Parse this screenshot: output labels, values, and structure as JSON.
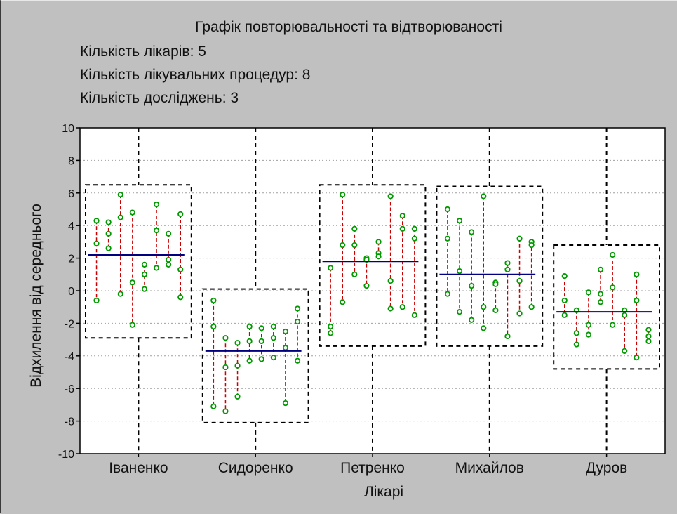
{
  "chart_data": {
    "type": "scatter",
    "title": "Графік повторювальності та відтворюваності",
    "info_lines": [
      "Кількість лікарів: 5",
      "Кількість лікувальних процедур: 8",
      "Кількість досліджень: 3"
    ],
    "xlabel": "Лікарі",
    "ylabel": "Відхилення від середнього",
    "ylim": [
      -10,
      10
    ],
    "yticks": [
      -10,
      -8,
      -6,
      -4,
      -2,
      0,
      2,
      4,
      6,
      8,
      10
    ],
    "grid": true,
    "categories": [
      "Іваненко",
      "Сидоренко",
      "Петренко",
      "Михайлов",
      "Дуров"
    ],
    "groups": [
      {
        "name": "Іваненко",
        "mean": 2.2,
        "upper": 6.5,
        "lower": -2.9,
        "procedures": [
          [
            4.3,
            2.9,
            -0.6
          ],
          [
            4.2,
            3.5,
            2.6
          ],
          [
            5.9,
            4.5,
            -0.2
          ],
          [
            4.8,
            0.5,
            -2.1
          ],
          [
            1.6,
            1.0,
            0.1
          ],
          [
            5.3,
            3.7,
            1.4
          ],
          [
            3.5,
            1.9,
            1.6
          ],
          [
            4.7,
            1.3,
            -0.4
          ]
        ]
      },
      {
        "name": "Сидоренко",
        "mean": -3.7,
        "upper": 0.1,
        "lower": -8.1,
        "procedures": [
          [
            -0.6,
            -2.2,
            -7.1
          ],
          [
            -2.9,
            -4.7,
            -7.4
          ],
          [
            -3.2,
            -4.6,
            -6.5
          ],
          [
            -2.2,
            -3.1,
            -4.3
          ],
          [
            -2.3,
            -3.1,
            -4.2
          ],
          [
            -2.2,
            -2.9,
            -4.1
          ],
          [
            -2.5,
            -3.5,
            -6.9
          ],
          [
            -1.1,
            -1.9,
            -4.3
          ]
        ]
      },
      {
        "name": "Петренко",
        "mean": 1.8,
        "upper": 6.5,
        "lower": -3.4,
        "procedures": [
          [
            1.4,
            -2.2,
            -2.6
          ],
          [
            5.9,
            2.8,
            -0.7
          ],
          [
            3.8,
            2.8,
            1.0
          ],
          [
            2.0,
            1.9,
            0.3
          ],
          [
            3.0,
            2.3,
            2.1
          ],
          [
            5.8,
            0.6,
            -1.1
          ],
          [
            4.6,
            3.8,
            -1.0
          ],
          [
            3.8,
            3.2,
            -1.5
          ]
        ]
      },
      {
        "name": "Михайлов",
        "mean": 1.0,
        "upper": 6.4,
        "lower": -3.4,
        "procedures": [
          [
            5.0,
            3.2,
            -0.2
          ],
          [
            4.3,
            1.2,
            -1.3
          ],
          [
            3.6,
            0.3,
            -1.8
          ],
          [
            5.8,
            -1.0,
            -2.3
          ],
          [
            0.5,
            0.4,
            -1.2
          ],
          [
            1.7,
            1.3,
            -2.8
          ],
          [
            3.2,
            0.6,
            -1.4
          ],
          [
            3.0,
            2.8,
            -1.0
          ]
        ]
      },
      {
        "name": "Дуров",
        "mean": -1.3,
        "upper": 2.8,
        "lower": -4.8,
        "procedures": [
          [
            0.9,
            -0.6,
            -1.5
          ],
          [
            -1.2,
            -2.6,
            -3.3
          ],
          [
            -0.1,
            -2.1,
            -2.7
          ],
          [
            1.3,
            -0.2,
            -0.7
          ],
          [
            2.2,
            0.2,
            -2.1
          ],
          [
            -1.2,
            -1.5,
            -3.7
          ],
          [
            1.0,
            -0.6,
            -4.1
          ],
          [
            -2.4,
            -2.8,
            -3.1
          ]
        ]
      }
    ],
    "colors": {
      "background": "#c0c0c0",
      "plot_area": "#ffffff",
      "points": "#009900",
      "range_lines": "#cc0000",
      "mean_line": "#000080",
      "boxes": "#000000",
      "grid": "#a0a0a0"
    }
  }
}
